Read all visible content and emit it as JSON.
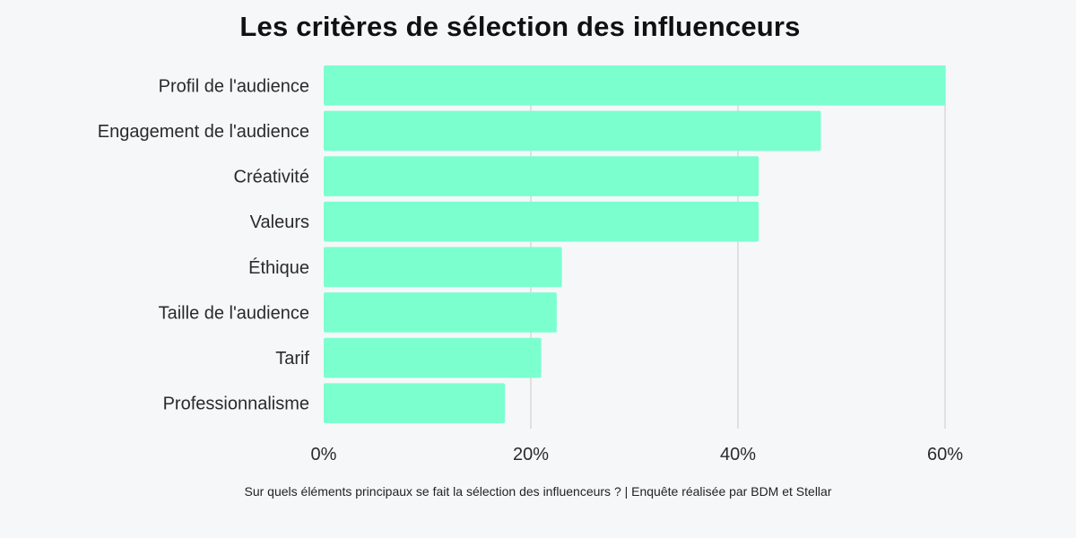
{
  "chart_data": {
    "type": "bar",
    "orientation": "horizontal",
    "title": "Les critères de sélection des influenceurs",
    "caption": "Sur quels éléments principaux se fait la sélection des influenceurs ? | Enquête réalisée par BDM et Stellar",
    "categories": [
      "Profil de l'audience",
      "Engagement de l'audience",
      "Créativité",
      "Valeurs",
      "Éthique",
      "Taille de l'audience",
      "Tarif",
      "Professionnalisme"
    ],
    "values": [
      60,
      48,
      42,
      42,
      23,
      22.5,
      21,
      17.5
    ],
    "unit": "%",
    "xlim": [
      0,
      60
    ],
    "xticks": [
      0,
      20,
      40,
      60
    ],
    "xtick_labels": [
      "0%",
      "20%",
      "40%",
      "60%"
    ],
    "grid": true,
    "bar_color": "#7bffcf",
    "grid_color": "#c8c8c8"
  }
}
